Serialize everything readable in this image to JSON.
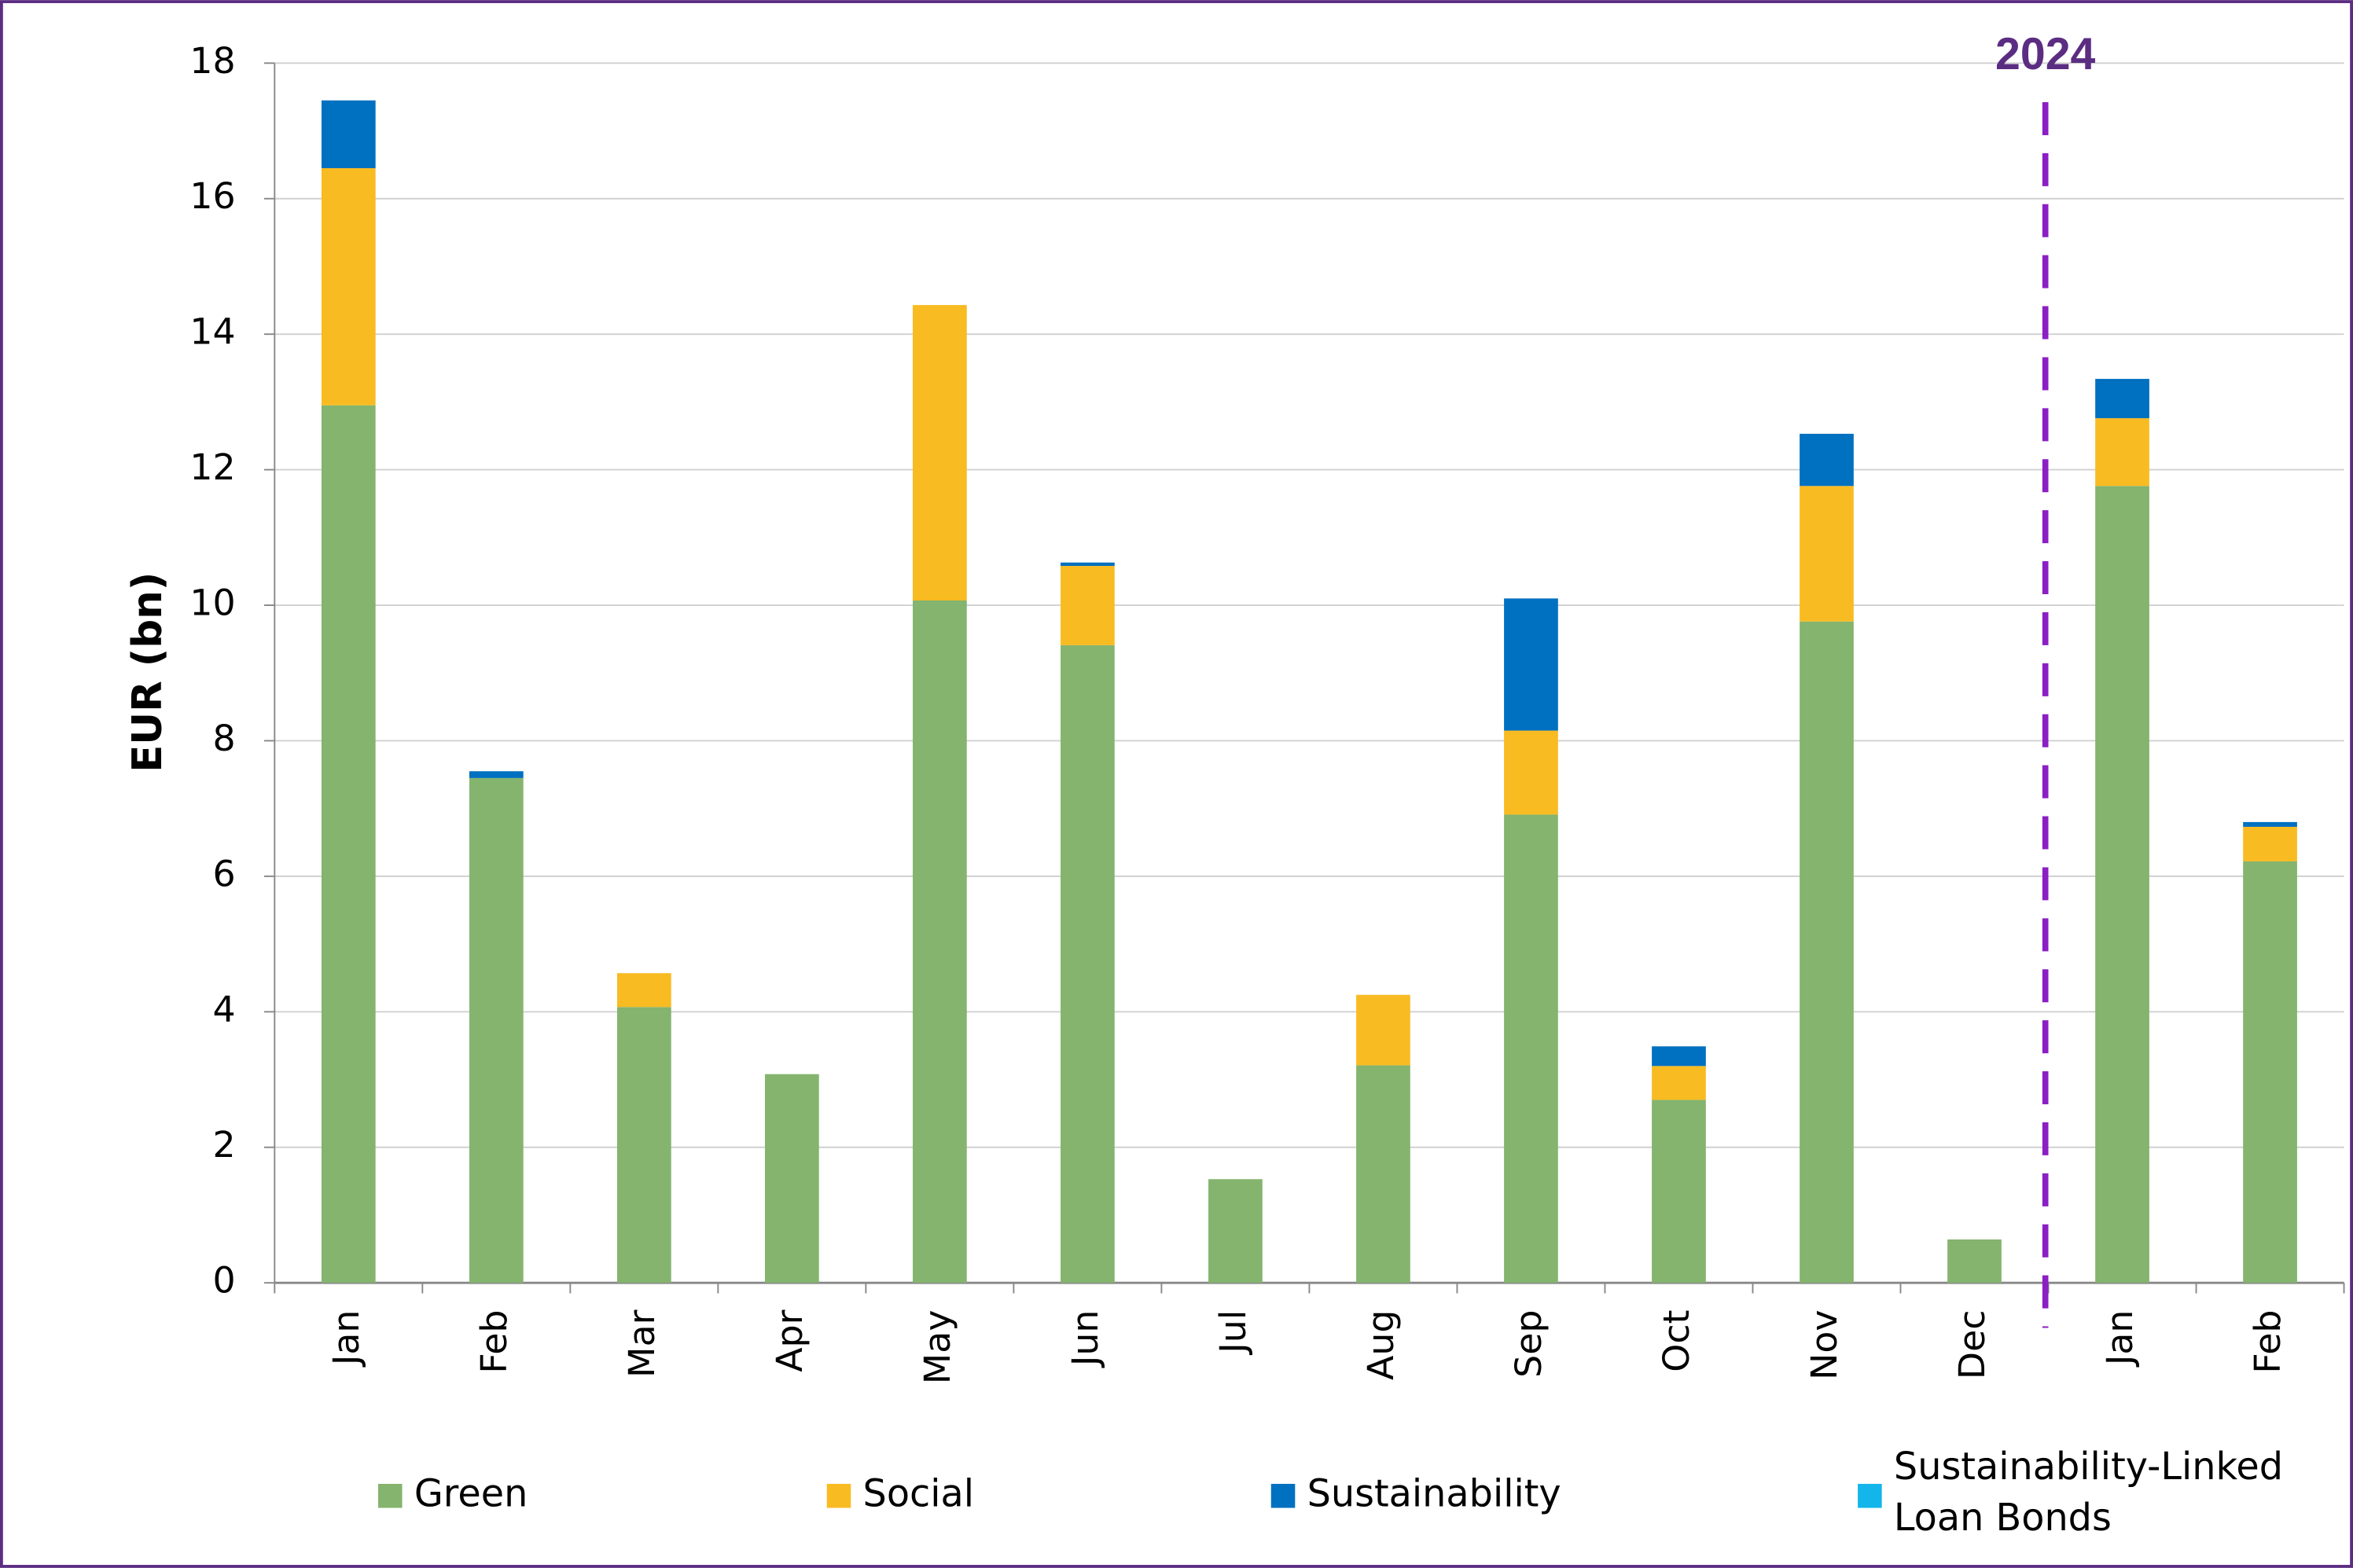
{
  "chart_data": {
    "type": "stacked_bar",
    "y_label": "EUR (bn)",
    "annotation": "2024",
    "categories": [
      "Jan",
      "Feb",
      "Mar",
      "Apr",
      "May",
      "Jun",
      "Jul",
      "Aug",
      "Sep",
      "Oct",
      "Nov",
      "Dec",
      "Jan",
      "Feb"
    ],
    "series": [
      {
        "name": "Green",
        "color": "#84b46e",
        "values": [
          12.95,
          7.45,
          4.07,
          3.08,
          10.07,
          9.41,
          1.53,
          3.21,
          6.91,
          2.7,
          9.76,
          0.64,
          11.76,
          6.22
        ]
      },
      {
        "name": "Social",
        "color": "#f8bb22",
        "values": [
          3.5,
          0,
          0.5,
          0,
          4.36,
          1.17,
          0,
          1.04,
          1.24,
          0.5,
          2.0,
          0,
          1.0,
          0.51
        ]
      },
      {
        "name": "Sustainability",
        "color": "#0070c0",
        "values": [
          1.0,
          0.1,
          0,
          0,
          0,
          0.05,
          0,
          0,
          1.95,
          0.29,
          0.77,
          0,
          0.58,
          0.07
        ]
      },
      {
        "name": "Sustainability-Linked Loan Bonds",
        "color": "#13b5ea",
        "values": [
          0,
          0,
          0,
          0,
          0,
          0,
          0,
          0,
          0,
          0,
          0,
          0,
          0,
          0
        ]
      }
    ],
    "ylim": [
      0,
      18
    ],
    "yticks": [
      0,
      2,
      4,
      6,
      8,
      10,
      12,
      14,
      16,
      18
    ],
    "grid": true,
    "legend": "bottom"
  }
}
